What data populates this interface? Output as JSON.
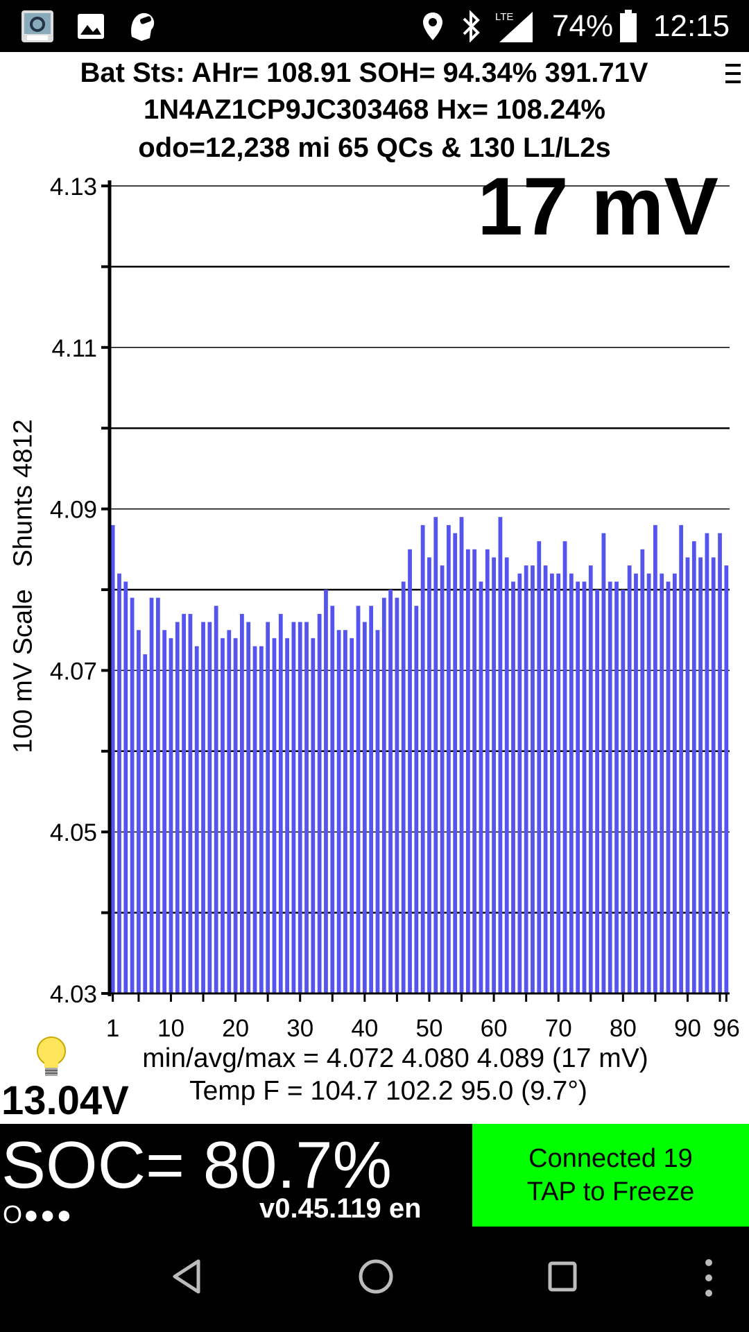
{
  "status_bar": {
    "icons_left": [
      "leafspy-pro-icon",
      "gallery-icon",
      "head-badge-icon"
    ],
    "icons_right": [
      "location-icon",
      "bluetooth-icon",
      "lte-signal-icon",
      "battery-icon"
    ],
    "network": "LTE",
    "battery": "74%",
    "time": "12:15"
  },
  "header": {
    "line1": "Bat Sts: AHr= 108.91 SOH= 94.34% 391.71V",
    "line2": "1N4AZ1CP9JC303468   Hx= 108.24%",
    "line3": "odo=12,238 mi 65 QCs & 130 L1/L2s"
  },
  "big_value": "17 mV",
  "y_axis_title": "100 mV Scale   Shunts 4812",
  "stats": {
    "line1": "min/avg/max = 4.072 4.080 4.089  (17 mV)",
    "line2": "Temp F = 104.7  102.2  95.0  (9.7°)"
  },
  "aux_voltage": "13.04V",
  "soc": "SOC= 80.7%",
  "dots": "O●●●",
  "version": "v0.45.119 en",
  "connect": {
    "line1": "Connected 19",
    "line2": "TAP to Freeze"
  },
  "nav_icons": [
    "back-icon",
    "home-icon",
    "recents-icon",
    "overflow-icon"
  ],
  "colors": {
    "bar": "#5555ee",
    "connect_bg": "#00ff00"
  },
  "chart_data": {
    "type": "bar",
    "title": "",
    "xlabel": "",
    "ylabel": "100 mV Scale   Shunts 4812",
    "ylim": [
      4.03,
      4.13
    ],
    "yticks": [
      "4.13",
      "4.11",
      "4.09",
      "4.07",
      "4.05",
      "4.03"
    ],
    "xticks": [
      "1",
      "10",
      "20",
      "30",
      "40",
      "50",
      "60",
      "70",
      "80",
      "90",
      "96"
    ],
    "grid": true,
    "x": [
      1,
      2,
      3,
      4,
      5,
      6,
      7,
      8,
      9,
      10,
      11,
      12,
      13,
      14,
      15,
      16,
      17,
      18,
      19,
      20,
      21,
      22,
      23,
      24,
      25,
      26,
      27,
      28,
      29,
      30,
      31,
      32,
      33,
      34,
      35,
      36,
      37,
      38,
      39,
      40,
      41,
      42,
      43,
      44,
      45,
      46,
      47,
      48,
      49,
      50,
      51,
      52,
      53,
      54,
      55,
      56,
      57,
      58,
      59,
      60,
      61,
      62,
      63,
      64,
      65,
      66,
      67,
      68,
      69,
      70,
      71,
      72,
      73,
      74,
      75,
      76,
      77,
      78,
      79,
      80,
      81,
      82,
      83,
      84,
      85,
      86,
      87,
      88,
      89,
      90,
      91,
      92,
      93,
      94,
      95,
      96
    ],
    "values": [
      4.088,
      4.082,
      4.081,
      4.079,
      4.075,
      4.072,
      4.079,
      4.079,
      4.075,
      4.074,
      4.076,
      4.077,
      4.077,
      4.073,
      4.076,
      4.076,
      4.078,
      4.074,
      4.075,
      4.074,
      4.077,
      4.076,
      4.073,
      4.073,
      4.076,
      4.074,
      4.077,
      4.074,
      4.076,
      4.076,
      4.076,
      4.074,
      4.077,
      4.08,
      4.078,
      4.075,
      4.075,
      4.074,
      4.078,
      4.076,
      4.078,
      4.075,
      4.079,
      4.08,
      4.079,
      4.081,
      4.085,
      4.078,
      4.088,
      4.084,
      4.089,
      4.083,
      4.088,
      4.087,
      4.089,
      4.085,
      4.085,
      4.081,
      4.085,
      4.084,
      4.089,
      4.084,
      4.081,
      4.082,
      4.083,
      4.083,
      4.086,
      4.083,
      4.082,
      4.082,
      4.086,
      4.082,
      4.081,
      4.081,
      4.083,
      4.08,
      4.087,
      4.081,
      4.081,
      4.08,
      4.083,
      4.082,
      4.085,
      4.082,
      4.088,
      4.082,
      4.081,
      4.082,
      4.088,
      4.084,
      4.086,
      4.084,
      4.087,
      4.084,
      4.087,
      4.083
    ]
  }
}
